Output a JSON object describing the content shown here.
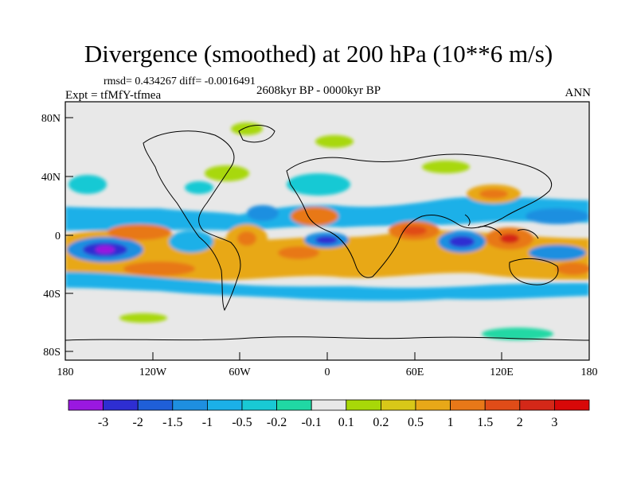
{
  "title": "Divergence (smoothed) at 200 hPa (10**6 m/s)",
  "stats": "rmsd= 0.434267 diff= -0.0016491",
  "experiment": "Expt = tfMfY-tfmea",
  "period": "2608kyr BP - 0000kyr BP",
  "season": "ANN",
  "lat_labels": [
    "80N",
    "40N",
    "0",
    "40S",
    "80S"
  ],
  "lon_labels": [
    "180",
    "120W",
    "60W",
    "0",
    "60E",
    "120E",
    "180"
  ],
  "colorbar": {
    "labels": [
      "-3",
      "-2",
      "-1.5",
      "-1",
      "-0.5",
      "-0.2",
      "-0.1",
      "0.1",
      "0.2",
      "0.5",
      "1",
      "1.5",
      "2",
      "3"
    ],
    "colors": [
      "#9a18e0",
      "#2e2ed2",
      "#1f5fd8",
      "#1e8fe0",
      "#1bb0e8",
      "#19c9d4",
      "#20d8a4",
      "#e8e8e8",
      "#a8d808",
      "#d8c818",
      "#e8a818",
      "#e87818",
      "#e04c18",
      "#d42818",
      "#d80808"
    ]
  },
  "map_colors": {
    "ocean_background": "#e8e8e8",
    "coastline": "#000000"
  }
}
